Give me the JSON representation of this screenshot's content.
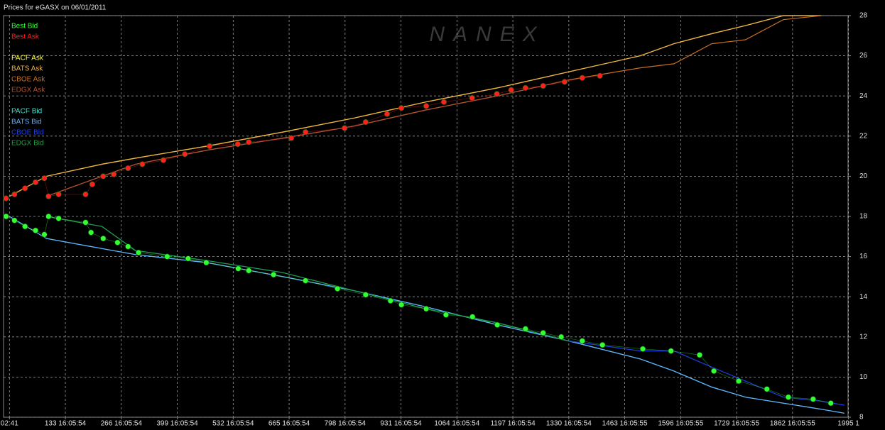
{
  "chart_data": {
    "type": "line",
    "title": "Prices for  eGASX  on  06/01/2011",
    "watermark": "NANEX",
    "xlim": [
      -14,
      1994
    ],
    "ylim": [
      8,
      28
    ],
    "yticks": [
      8,
      10,
      12,
      14,
      16,
      18,
      20,
      22,
      24,
      26,
      28
    ],
    "xticks": [
      {
        "value": 0,
        "label": "02:41"
      },
      {
        "value": 133,
        "label": "133 16:05:54"
      },
      {
        "value": 266,
        "label": "266 16:05:54"
      },
      {
        "value": 399,
        "label": "399 16:05:54"
      },
      {
        "value": 532,
        "label": "532 16:05:54"
      },
      {
        "value": 665,
        "label": "665 16:05:54"
      },
      {
        "value": 798,
        "label": "798 16:05:54"
      },
      {
        "value": 931,
        "label": "931 16:05:54"
      },
      {
        "value": 1064,
        "label": "1064 16:05:54"
      },
      {
        "value": 1197,
        "label": "1197 16:05:54"
      },
      {
        "value": 1330,
        "label": "1330 16:05:54"
      },
      {
        "value": 1463,
        "label": "1463 16:05:55"
      },
      {
        "value": 1596,
        "label": "1596 16:05:55"
      },
      {
        "value": 1729,
        "label": "1729 16:05:55"
      },
      {
        "value": 1862,
        "label": "1862 16:05:55"
      },
      {
        "value": 1995,
        "label": "1995 1"
      }
    ],
    "grid": true,
    "legend": "top-left",
    "series": [
      {
        "name": "Best Bid",
        "color": "#33ff33",
        "marker": true,
        "x": [
          -8,
          12,
          37,
          62,
          83,
          93,
          117,
          181,
          194,
          223,
          257,
          282,
          307,
          375,
          425,
          468,
          544,
          569,
          628,
          704,
          780,
          847,
          906,
          932,
          991,
          1038,
          1101,
          1160,
          1227,
          1269,
          1312,
          1362,
          1410,
          1506,
          1573,
          1641,
          1675,
          1734,
          1801,
          1852,
          1911,
          1953
        ],
        "values": [
          18.0,
          17.8,
          17.5,
          17.3,
          17.1,
          18.0,
          17.9,
          17.7,
          17.2,
          16.9,
          16.7,
          16.5,
          16.2,
          16.0,
          15.9,
          15.7,
          15.4,
          15.3,
          15.1,
          14.8,
          14.4,
          14.1,
          13.8,
          13.6,
          13.4,
          13.1,
          13.0,
          12.6,
          12.4,
          12.2,
          12.0,
          11.8,
          11.6,
          11.4,
          11.3,
          11.1,
          10.3,
          9.8,
          9.4,
          9.0,
          8.9,
          8.7
        ]
      },
      {
        "name": "Best Ask",
        "color": "#ff2020",
        "marker": true,
        "x": [
          -8,
          12,
          37,
          62,
          83,
          93,
          117,
          181,
          197,
          223,
          248,
          282,
          316,
          366,
          417,
          476,
          543,
          569,
          670,
          704,
          797,
          847,
          898,
          932,
          991,
          1033,
          1100,
          1159,
          1193,
          1227,
          1269,
          1320,
          1362,
          1404
        ],
        "values": [
          18.9,
          19.1,
          19.4,
          19.7,
          19.9,
          19.0,
          19.1,
          19.1,
          19.6,
          20.0,
          20.1,
          20.4,
          20.6,
          20.8,
          21.1,
          21.5,
          21.6,
          21.7,
          21.9,
          22.2,
          22.4,
          22.7,
          23.1,
          23.4,
          23.5,
          23.7,
          23.9,
          24.1,
          24.3,
          24.4,
          24.5,
          24.7,
          24.9,
          25.0
        ]
      },
      {
        "name": "PACF Ask",
        "color": "#ffff40",
        "x": [
          0,
          88,
          220,
          300,
          470,
          650,
          820,
          990,
          1160,
          1330,
          1500,
          1580,
          1670,
          1750,
          1840,
          1930
        ],
        "values": [
          19.0,
          20.0,
          20.6,
          20.9,
          21.5,
          22.2,
          22.9,
          23.7,
          24.4,
          25.2,
          26.0,
          26.6,
          27.1,
          27.5,
          28.0,
          28.0
        ]
      },
      {
        "name": "BATS Ask",
        "color": "#f0b040",
        "x": [
          0,
          88,
          220,
          300,
          470,
          650,
          820,
          990,
          1160,
          1330,
          1500,
          1580,
          1670,
          1750,
          1840,
          1930
        ],
        "values": [
          19.0,
          20.0,
          20.6,
          20.9,
          21.5,
          22.2,
          22.9,
          23.7,
          24.4,
          25.2,
          26.0,
          26.6,
          27.1,
          27.5,
          28.0,
          28.0
        ]
      },
      {
        "name": "CBOE Ask",
        "color": "#c87020",
        "x": [
          88,
          220,
          300,
          470,
          650,
          820,
          990,
          1160,
          1330,
          1500,
          1580,
          1670,
          1750,
          1840,
          1930
        ],
        "values": [
          19.0,
          20.0,
          20.6,
          21.3,
          21.9,
          22.5,
          23.3,
          24.0,
          24.8,
          25.4,
          25.6,
          26.6,
          26.8,
          27.8,
          28.0
        ]
      },
      {
        "name": "EDGX Ask",
        "color": "#b05030",
        "x": [
          88,
          220,
          300,
          470,
          650,
          820,
          990,
          1160,
          1330
        ],
        "values": [
          19.0,
          20.0,
          20.6,
          21.3,
          21.9,
          22.5,
          23.3,
          24.0,
          24.8
        ]
      },
      {
        "name": "PACF Bid",
        "color": "#40e0d0",
        "x": [
          0,
          88,
          220,
          300,
          470,
          650,
          820,
          990,
          1160,
          1330,
          1500,
          1580,
          1670,
          1750,
          1840,
          1930,
          1985
        ],
        "values": [
          18.0,
          16.9,
          16.4,
          16.1,
          15.7,
          15.0,
          14.3,
          13.5,
          12.6,
          11.8,
          10.9,
          10.3,
          9.5,
          9.0,
          8.7,
          8.4,
          8.2
        ]
      },
      {
        "name": "BATS Bid",
        "color": "#60b0ff",
        "x": [
          0,
          88,
          220,
          300,
          470,
          650,
          820,
          990,
          1160,
          1330,
          1500,
          1580,
          1670,
          1750,
          1840,
          1930,
          1985
        ],
        "values": [
          18.0,
          16.9,
          16.4,
          16.1,
          15.7,
          15.0,
          14.3,
          13.5,
          12.6,
          11.8,
          10.9,
          10.3,
          9.5,
          9.0,
          8.7,
          8.4,
          8.2
        ]
      },
      {
        "name": "CBOE Bid",
        "color": "#2040e0",
        "x": [
          88,
          220,
          300,
          470,
          650,
          820,
          990,
          1160,
          1330,
          1500,
          1580,
          1670,
          1750,
          1840,
          1930,
          1985
        ],
        "values": [
          18.0,
          17.5,
          16.3,
          15.8,
          15.2,
          14.3,
          13.4,
          12.7,
          11.8,
          11.3,
          11.3,
          10.5,
          9.8,
          9.0,
          8.8,
          8.6
        ]
      },
      {
        "name": "EDGX Bid",
        "color": "#20a040",
        "x": [
          88,
          220,
          300,
          470,
          650,
          820,
          990,
          1160,
          1330
        ],
        "values": [
          18.0,
          17.5,
          16.3,
          15.8,
          15.2,
          14.3,
          13.4,
          12.7,
          11.8
        ]
      }
    ]
  }
}
